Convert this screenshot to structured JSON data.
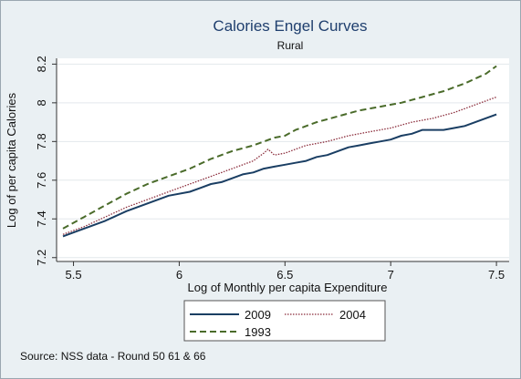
{
  "chart_data": {
    "type": "line",
    "title": "Calories Engel Curves",
    "subtitle": "Rural",
    "xlabel": "Log of Monthly per capita Expenditure",
    "ylabel": "Log of per capita Calories",
    "xlim": [
      5.42,
      7.56
    ],
    "ylim": [
      7.18,
      8.23
    ],
    "xticks": [
      5.5,
      6,
      6.5,
      7,
      7.5
    ],
    "xtick_labels": [
      "5.5",
      "6",
      "6.5",
      "7",
      "7.5"
    ],
    "yticks": [
      7.2,
      7.4,
      7.6,
      7.8,
      8,
      8.2
    ],
    "ytick_labels": [
      "7.2",
      "7.4",
      "7.6",
      "7.8",
      "8",
      "8.2"
    ],
    "grid": true,
    "legend_position": "bottom",
    "note": "Source: NSS data - Round 50 61 & 66",
    "series": [
      {
        "name": "2009",
        "color": "#1a3e63",
        "style": "solid",
        "x": [
          5.45,
          5.55,
          5.65,
          5.75,
          5.85,
          5.95,
          6.05,
          6.1,
          6.15,
          6.2,
          6.25,
          6.3,
          6.35,
          6.4,
          6.45,
          6.5,
          6.55,
          6.6,
          6.65,
          6.7,
          6.75,
          6.8,
          6.85,
          6.9,
          6.95,
          7.0,
          7.05,
          7.1,
          7.15,
          7.2,
          7.25,
          7.3,
          7.35,
          7.4,
          7.45,
          7.5
        ],
        "y": [
          7.31,
          7.35,
          7.39,
          7.44,
          7.48,
          7.52,
          7.54,
          7.56,
          7.58,
          7.59,
          7.61,
          7.63,
          7.64,
          7.66,
          7.67,
          7.68,
          7.69,
          7.7,
          7.72,
          7.73,
          7.75,
          7.77,
          7.78,
          7.79,
          7.8,
          7.81,
          7.83,
          7.84,
          7.86,
          7.86,
          7.86,
          7.87,
          7.88,
          7.9,
          7.92,
          7.94
        ]
      },
      {
        "name": "2004",
        "color": "#8a2b3a",
        "style": "dotted",
        "x": [
          5.45,
          5.55,
          5.65,
          5.75,
          5.85,
          5.95,
          6.05,
          6.15,
          6.25,
          6.35,
          6.4,
          6.42,
          6.45,
          6.5,
          6.55,
          6.6,
          6.7,
          6.8,
          6.9,
          7.0,
          7.1,
          7.2,
          7.3,
          7.4,
          7.5
        ],
        "y": [
          7.32,
          7.36,
          7.41,
          7.46,
          7.5,
          7.54,
          7.58,
          7.62,
          7.66,
          7.7,
          7.74,
          7.76,
          7.73,
          7.74,
          7.76,
          7.78,
          7.8,
          7.83,
          7.85,
          7.87,
          7.9,
          7.92,
          7.95,
          7.99,
          8.03
        ]
      },
      {
        "name": "1993",
        "color": "#4a6b2a",
        "style": "dashed",
        "x": [
          5.45,
          5.55,
          5.65,
          5.75,
          5.85,
          5.95,
          6.05,
          6.15,
          6.25,
          6.35,
          6.45,
          6.5,
          6.55,
          6.65,
          6.75,
          6.85,
          6.95,
          7.05,
          7.15,
          7.25,
          7.35,
          7.45,
          7.5
        ],
        "y": [
          7.35,
          7.41,
          7.47,
          7.53,
          7.58,
          7.62,
          7.66,
          7.71,
          7.75,
          7.78,
          7.82,
          7.83,
          7.86,
          7.9,
          7.93,
          7.96,
          7.98,
          8.0,
          8.03,
          8.06,
          8.1,
          8.15,
          8.19
        ]
      }
    ],
    "legend_order": [
      "2009",
      "2004",
      "1993"
    ]
  }
}
